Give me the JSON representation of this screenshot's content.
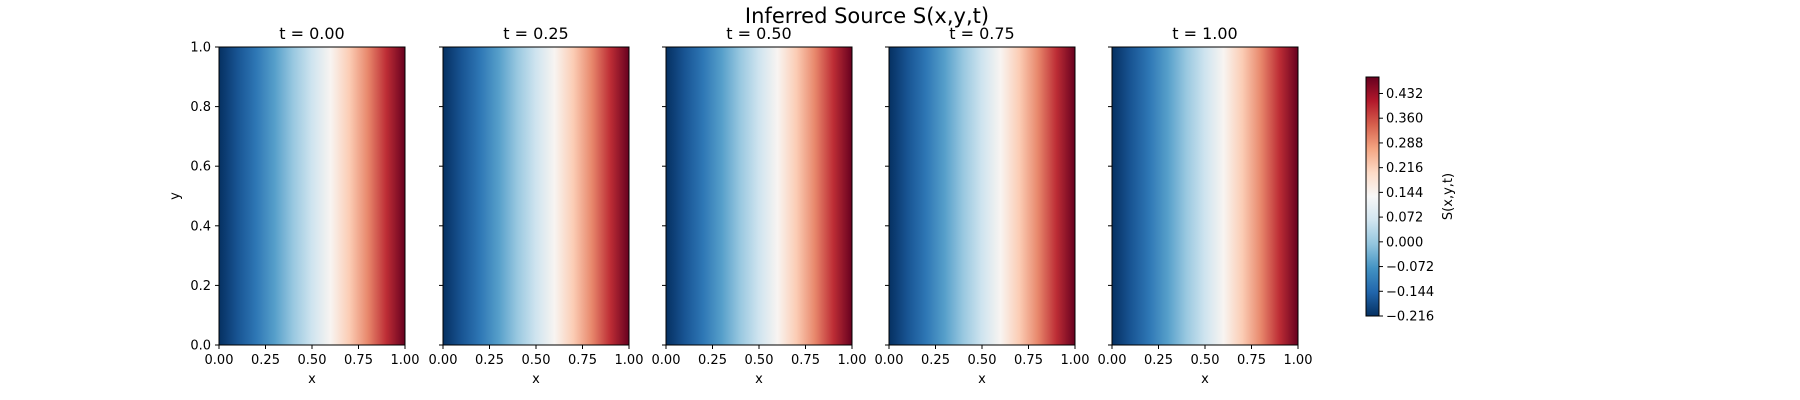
{
  "chart_data": {
    "type": "heatmap",
    "title": "Inferred Source S(x,y,t)",
    "panels": [
      {
        "title": "t = 0.00",
        "t": 0.0
      },
      {
        "title": "t = 0.25",
        "t": 0.25
      },
      {
        "title": "t = 0.50",
        "t": 0.5
      },
      {
        "title": "t = 0.75",
        "t": 0.75
      },
      {
        "title": "t = 1.00",
        "t": 1.0
      }
    ],
    "xlabel": "x",
    "ylabel": "y",
    "xlim": [
      0,
      1
    ],
    "ylim": [
      0,
      1
    ],
    "xticks": [
      "0.00",
      "0.25",
      "0.50",
      "0.75",
      "1.00"
    ],
    "yticks": [
      "0.0",
      "0.2",
      "0.4",
      "0.6",
      "0.8",
      "1.0"
    ],
    "field_profile_x": [
      0.0,
      0.1,
      0.2,
      0.3,
      0.4,
      0.5,
      0.6,
      0.7,
      0.8,
      0.9,
      1.0
    ],
    "field_profile_values": [
      -0.216,
      -0.17,
      -0.12,
      -0.06,
      0.0,
      0.06,
      0.14,
      0.22,
      0.3,
      0.39,
      0.48
    ],
    "colorbar": {
      "label": "S(x,y,t)",
      "colormap": "RdBu_r",
      "range": [
        -0.216,
        0.48
      ],
      "ticks": [
        "−0.216",
        "−0.144",
        "−0.072",
        "0.000",
        "0.072",
        "0.144",
        "0.216",
        "0.288",
        "0.360",
        "0.432"
      ],
      "tick_values": [
        -0.216,
        -0.144,
        -0.072,
        0.0,
        0.072,
        0.144,
        0.216,
        0.288,
        0.36,
        0.432
      ]
    },
    "colormap_stops": [
      "#053061",
      "#2166ac",
      "#4393c3",
      "#92c5de",
      "#d1e5f0",
      "#f7f7f7",
      "#fddbc7",
      "#f4a582",
      "#d6604d",
      "#b2182b",
      "#67001f"
    ]
  }
}
